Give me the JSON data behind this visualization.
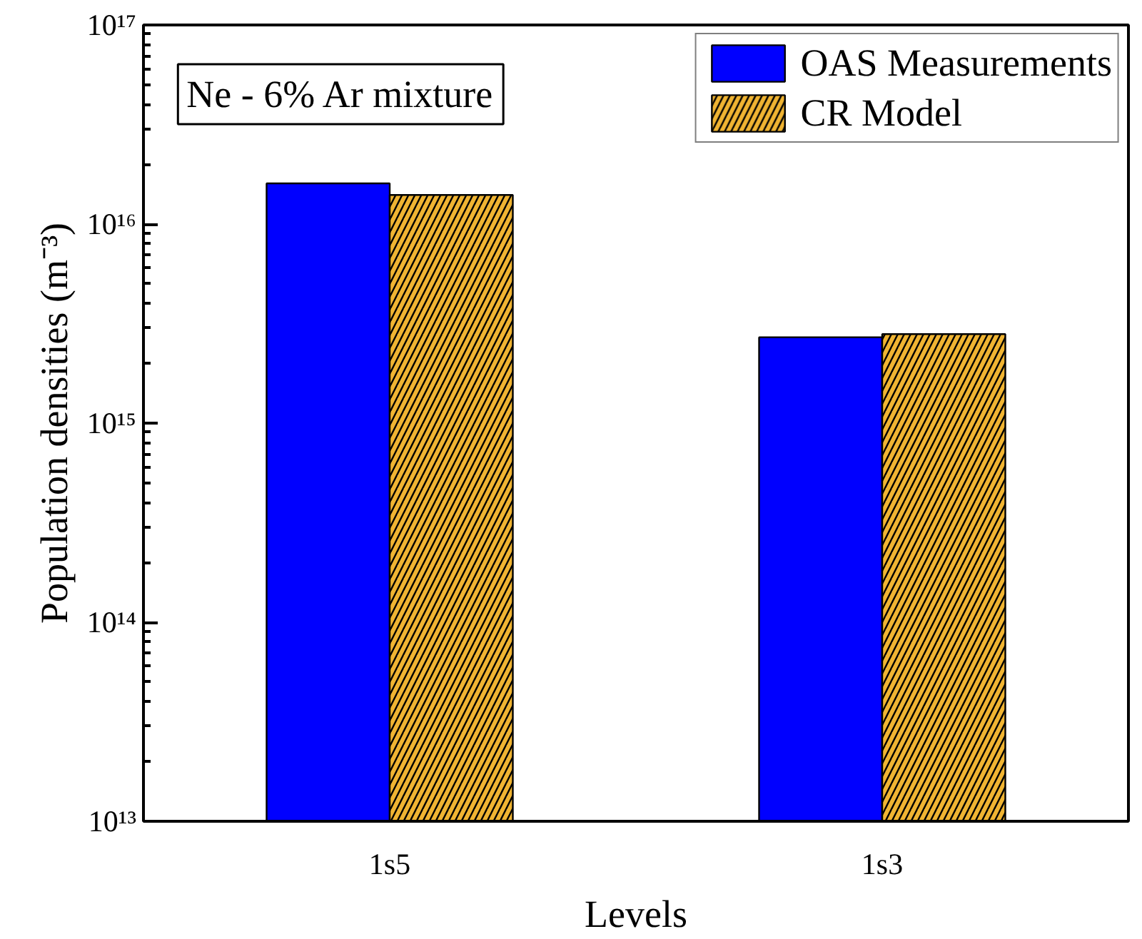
{
  "chart_data": {
    "type": "bar",
    "categories": [
      "1s5",
      "1s3"
    ],
    "series": [
      {
        "name": "OAS Measurements",
        "color": "#0000ff",
        "values": [
          1.6e+16,
          2700000000000000.0
        ]
      },
      {
        "name": "CR Model",
        "color": "#f0b432",
        "values": [
          1.4e+16,
          2800000000000000.0
        ]
      }
    ],
    "log": true,
    "ylim": [
      10000000000000.0,
      1e+17
    ],
    "yticks": [
      {
        "value": 10000000000000.0,
        "label": "10¹³"
      },
      {
        "value": 100000000000000.0,
        "label": "10¹⁴"
      },
      {
        "value": 1000000000000000.0,
        "label": "10¹⁵"
      },
      {
        "value": 1e+16,
        "label": "10¹⁶"
      },
      {
        "value": 1e+17,
        "label": "10¹⁷"
      }
    ],
    "xlabel": "Levels",
    "ylabel": "Population densities (m⁻³)",
    "annotations": [
      "Ne - 6% Ar mixture"
    ],
    "legend": "top right"
  }
}
